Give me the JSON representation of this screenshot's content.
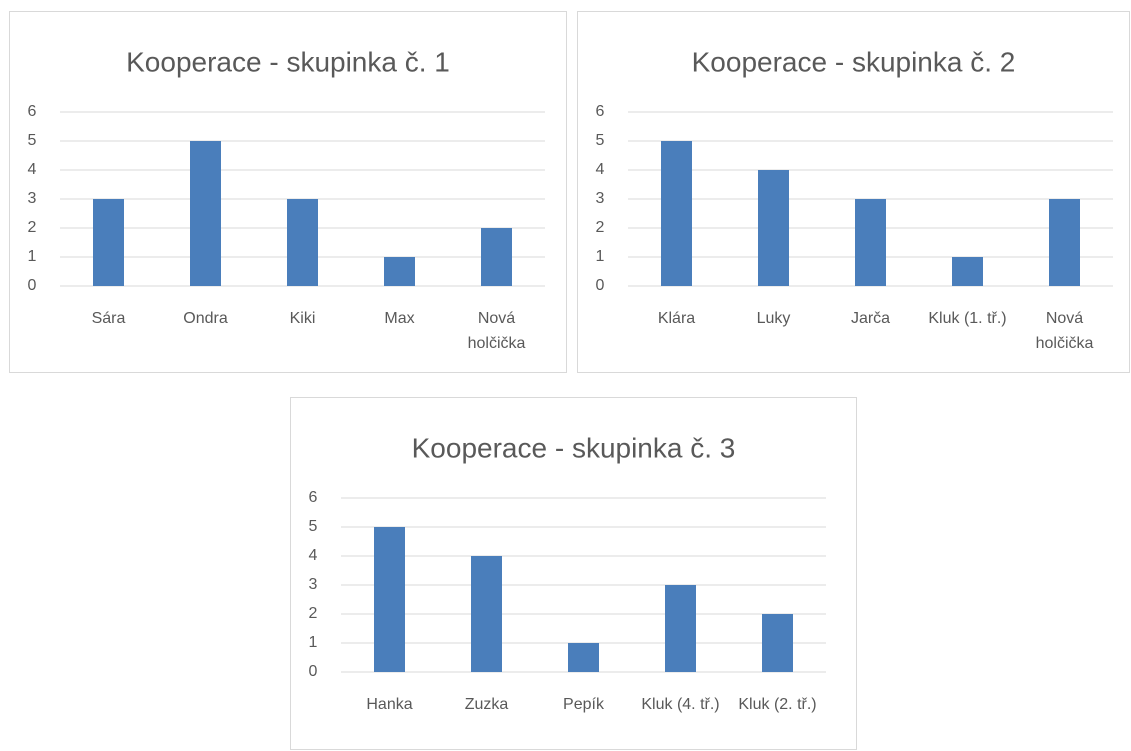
{
  "chart_data": [
    {
      "type": "bar",
      "title": "Kooperace - skupinka č. 1",
      "categories": [
        "Sára",
        "Ondra",
        "Kiki",
        "Max",
        "Nová holčička"
      ],
      "values": [
        3,
        5,
        3,
        1,
        2
      ],
      "color": "#4a7ebb",
      "ylim": [
        0,
        6
      ],
      "yticks": [
        0,
        1,
        2,
        3,
        4,
        5,
        6
      ],
      "grid": true
    },
    {
      "type": "bar",
      "title": "Kooperace - skupinka č. 2",
      "categories": [
        "Klára",
        "Luky",
        "Jarča",
        "Kluk (1. tř.)",
        "Nová holčička"
      ],
      "values": [
        5,
        4,
        3,
        1,
        3
      ],
      "color": "#4a7ebb",
      "ylim": [
        0,
        6
      ],
      "yticks": [
        0,
        1,
        2,
        3,
        4,
        5,
        6
      ],
      "grid": true
    },
    {
      "type": "bar",
      "title": "Kooperace - skupinka č. 3",
      "categories": [
        "Hanka",
        "Zuzka",
        "Pepík",
        "Kluk (4. tř.)",
        "Kluk (2. tř.)"
      ],
      "values": [
        5,
        4,
        1,
        3,
        2
      ],
      "color": "#4a7ebb",
      "ylim": [
        0,
        6
      ],
      "yticks": [
        0,
        1,
        2,
        3,
        4,
        5,
        6
      ],
      "grid": true
    }
  ]
}
